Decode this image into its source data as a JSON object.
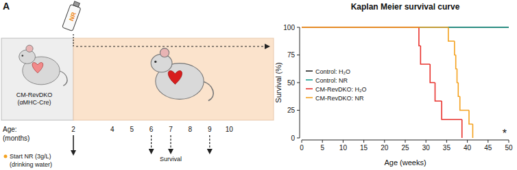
{
  "panel_label": "A",
  "diagram": {
    "bottle_label": "NR",
    "mouse_label": [
      "CM-RevDKO",
      "(αMHC-Cre)"
    ],
    "age_label": [
      "Age:",
      "(months)"
    ],
    "ages": [
      2,
      4,
      5,
      6,
      7,
      8,
      9,
      10
    ],
    "start_age": 2,
    "survival_ages": [
      6,
      7,
      9
    ],
    "start_note": [
      "Start NR (3g/L)",
      "(drinking water)"
    ],
    "survival_label": "Survival"
  },
  "chart_data": {
    "type": "line",
    "title": "Kaplan Meier survival curve",
    "x_label": "Age (weeks)",
    "y_label": "Survival (%)",
    "xlim": [
      0,
      50
    ],
    "ylim": [
      0,
      100
    ],
    "xticks": [
      0,
      5,
      10,
      15,
      20,
      25,
      30,
      35,
      40,
      45,
      50
    ],
    "yticks": [
      0,
      25,
      50,
      75,
      100
    ],
    "legend": "left",
    "line_style": "step",
    "series": [
      {
        "name": "Control: H₂O",
        "color": "#222222",
        "x": [
          0,
          50
        ],
        "values": [
          100,
          100
        ]
      },
      {
        "name": "Control: NR",
        "color": "#1a9e8f",
        "x": [
          0,
          50
        ],
        "values": [
          100,
          100
        ]
      },
      {
        "name": "CM-RevDKO: H₂O",
        "color": "#e8322d",
        "x": [
          0,
          28.3,
          28.7,
          31,
          32.2,
          33.8,
          38.7
        ],
        "values": [
          100,
          83.3,
          66.7,
          50,
          33.3,
          16.7,
          0
        ]
      },
      {
        "name": "CM-RevDKO: NR",
        "color": "#f4a11d",
        "x": [
          0,
          35.4,
          36.9,
          37.2,
          37.5,
          37.8,
          38.2,
          40.4,
          41.3
        ],
        "values": [
          100,
          87.5,
          75,
          62.5,
          50,
          37.5,
          25,
          12.5,
          0
        ]
      }
    ],
    "annotations": [
      {
        "text": "*",
        "x": 49,
        "y": 3
      }
    ]
  }
}
